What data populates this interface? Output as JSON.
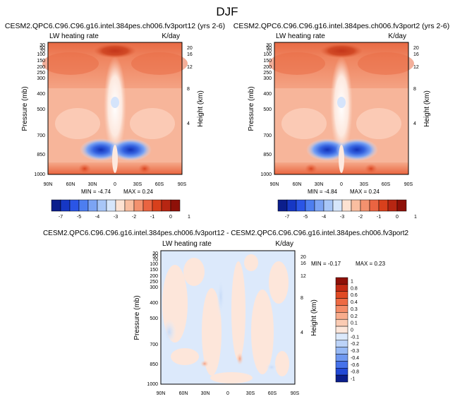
{
  "figure": {
    "title": "DJF"
  },
  "chart_data": [
    {
      "type": "heatmap",
      "title": "CESM2.QPC6.C96.C96.g16.intel.384pes.ch006.fv3port12 (yrs 2-6)",
      "field_label": "LW heating rate",
      "units": "K/day",
      "xlabel": "",
      "ylabel": "Pressure (mb)",
      "ylabel_right": "Height (km)",
      "x_ticks": [
        "90N",
        "60N",
        "30N",
        "0",
        "30S",
        "60S",
        "90S"
      ],
      "y_ticks": [
        "30",
        "50",
        "70",
        "100",
        "150",
        "200",
        "250",
        "300",
        "400",
        "500",
        "700",
        "850",
        "1000"
      ],
      "y_ticks_right": [
        "20",
        "16",
        "12",
        "8",
        "4"
      ],
      "min_label": "MIN = -4.74",
      "max_label": "MAX =  0.24",
      "min": -4.74,
      "max": 0.24
    },
    {
      "type": "heatmap",
      "title": "CESM2.QPC6.C96.C96.g16.intel.384pes.ch006.fv3port2 (yrs 2-6)",
      "field_label": "LW heating rate",
      "units": "K/day",
      "xlabel": "",
      "ylabel": "Pressure (mb)",
      "ylabel_right": "Height (km)",
      "x_ticks": [
        "90N",
        "60N",
        "30N",
        "0",
        "30S",
        "60S",
        "90S"
      ],
      "y_ticks": [
        "30",
        "50",
        "70",
        "100",
        "150",
        "200",
        "250",
        "300",
        "400",
        "500",
        "700",
        "850",
        "1000"
      ],
      "y_ticks_right": [
        "20",
        "16",
        "12",
        "8",
        "4"
      ],
      "min_label": "MIN = -4.84",
      "max_label": "MAX =  0.24",
      "min": -4.84,
      "max": 0.24
    },
    {
      "type": "heatmap",
      "title": "CESM2.QPC6.C96.C96.g16.intel.384pes.ch006.fv3port12 - CESM2.QPC6.C96.C96.g16.intel.384pes.ch006.fv3port2",
      "field_label": "LW heating rate",
      "units": "K/day",
      "xlabel": "",
      "ylabel": "Pressure (mb)",
      "ylabel_right": "Height (km)",
      "x_ticks": [
        "90N",
        "60N",
        "30N",
        "0",
        "30S",
        "60S",
        "90S"
      ],
      "y_ticks": [
        "30",
        "50",
        "70",
        "100",
        "150",
        "200",
        "250",
        "300",
        "400",
        "500",
        "700",
        "850",
        "1000"
      ],
      "y_ticks_right": [
        "20",
        "16",
        "12",
        "8",
        "4"
      ],
      "min_label": "MIN = -0.17",
      "max_label": "MAX =  0.23",
      "min": -0.17,
      "max": 0.23
    }
  ],
  "colorbars": {
    "top": {
      "orientation": "horizontal",
      "labels": [
        "-7",
        "-5",
        "-4",
        "-3",
        "-2",
        "-1",
        "0",
        "1"
      ],
      "colors": [
        "#0b1e8c",
        "#1637c4",
        "#2a55e6",
        "#4d7ef0",
        "#7ca4f4",
        "#a8c6f7",
        "#d6e6fb",
        "#fde2d2",
        "#f9bea0",
        "#f3916e",
        "#ea6441",
        "#d8401c",
        "#b72612",
        "#8e1008"
      ]
    },
    "bottom": {
      "orientation": "vertical",
      "labels": [
        "1",
        "0.8",
        "0.6",
        "0.4",
        "0.3",
        "0.2",
        "0.1",
        "0",
        "-0.1",
        "-0.2",
        "-0.3",
        "-0.4",
        "-0.6",
        "-0.8",
        "-1"
      ],
      "colors": [
        "#8e1008",
        "#c32a14",
        "#e04a24",
        "#ee6a43",
        "#f48c68",
        "#f8ac8c",
        "#fbcbb3",
        "#fde6da",
        "#dce9fb",
        "#bcd3f8",
        "#97b9f5",
        "#6f98f0",
        "#4672ea",
        "#2249d6",
        "#0b1e8c"
      ]
    }
  }
}
